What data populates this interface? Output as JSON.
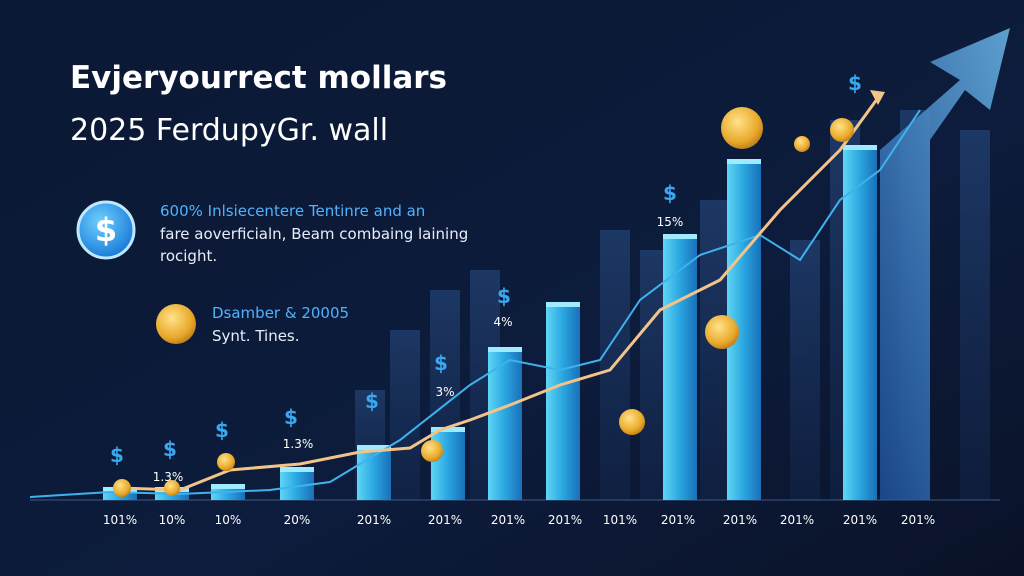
{
  "header": {
    "title": "Evjeryourrect mollars",
    "subtitle": "2025 FerdupyGr. wall"
  },
  "callouts": [
    {
      "lines": [
        "600% Inlsiecentere Tentinre and an",
        "fare aoverficialn, Beam combaing laining",
        "rocight."
      ]
    },
    {
      "lines": [
        "Dsamber & 20005",
        "Synt. Tines."
      ]
    }
  ],
  "bar_labels": [
    "1.3%",
    "1.3%",
    "3%",
    "4%",
    "15%"
  ],
  "x_labels": [
    "101%",
    "10%",
    "10%",
    "20%",
    "201%",
    "201%",
    "201%",
    "201%",
    "101%",
    "201%",
    "201%",
    "201%",
    "201%",
    "201%"
  ]
}
